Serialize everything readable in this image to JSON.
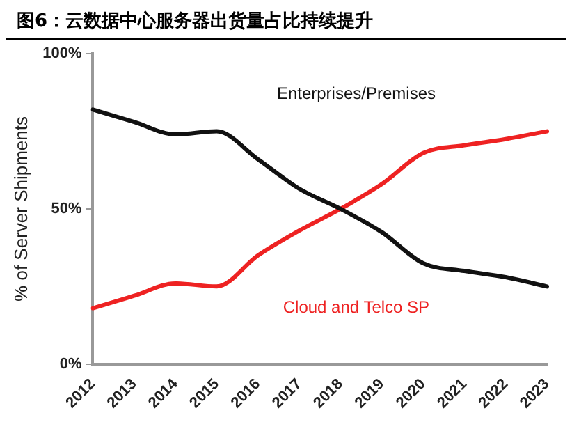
{
  "chart_data": {
    "type": "line",
    "title": "图6：云数据中心服务器出货量占比持续提升",
    "ylabel": "% of Server Shipments",
    "categories": [
      "2012",
      "2013",
      "2014",
      "2015",
      "2016",
      "2017",
      "2018",
      "2019",
      "2020",
      "2021",
      "2022",
      "2023"
    ],
    "series": [
      {
        "name": "Enterprises/Premises",
        "color": "#111111",
        "values": [
          82,
          78,
          74,
          75,
          66,
          56.5,
          50,
          42.5,
          32.5,
          30,
          28,
          25
        ]
      },
      {
        "name": "Cloud and Telco SP",
        "color": "#ee2222",
        "values": [
          18,
          22,
          26,
          25,
          35,
          43,
          50,
          58,
          68,
          70.5,
          72.5,
          75
        ]
      }
    ],
    "ylim": [
      0,
      100
    ],
    "yticks": [
      {
        "value": 0,
        "label": "0%"
      },
      {
        "value": 50,
        "label": "50%"
      },
      {
        "value": 100,
        "label": "100%"
      }
    ],
    "grid": false,
    "legend": false,
    "marker": "none",
    "line_style": "solid"
  }
}
